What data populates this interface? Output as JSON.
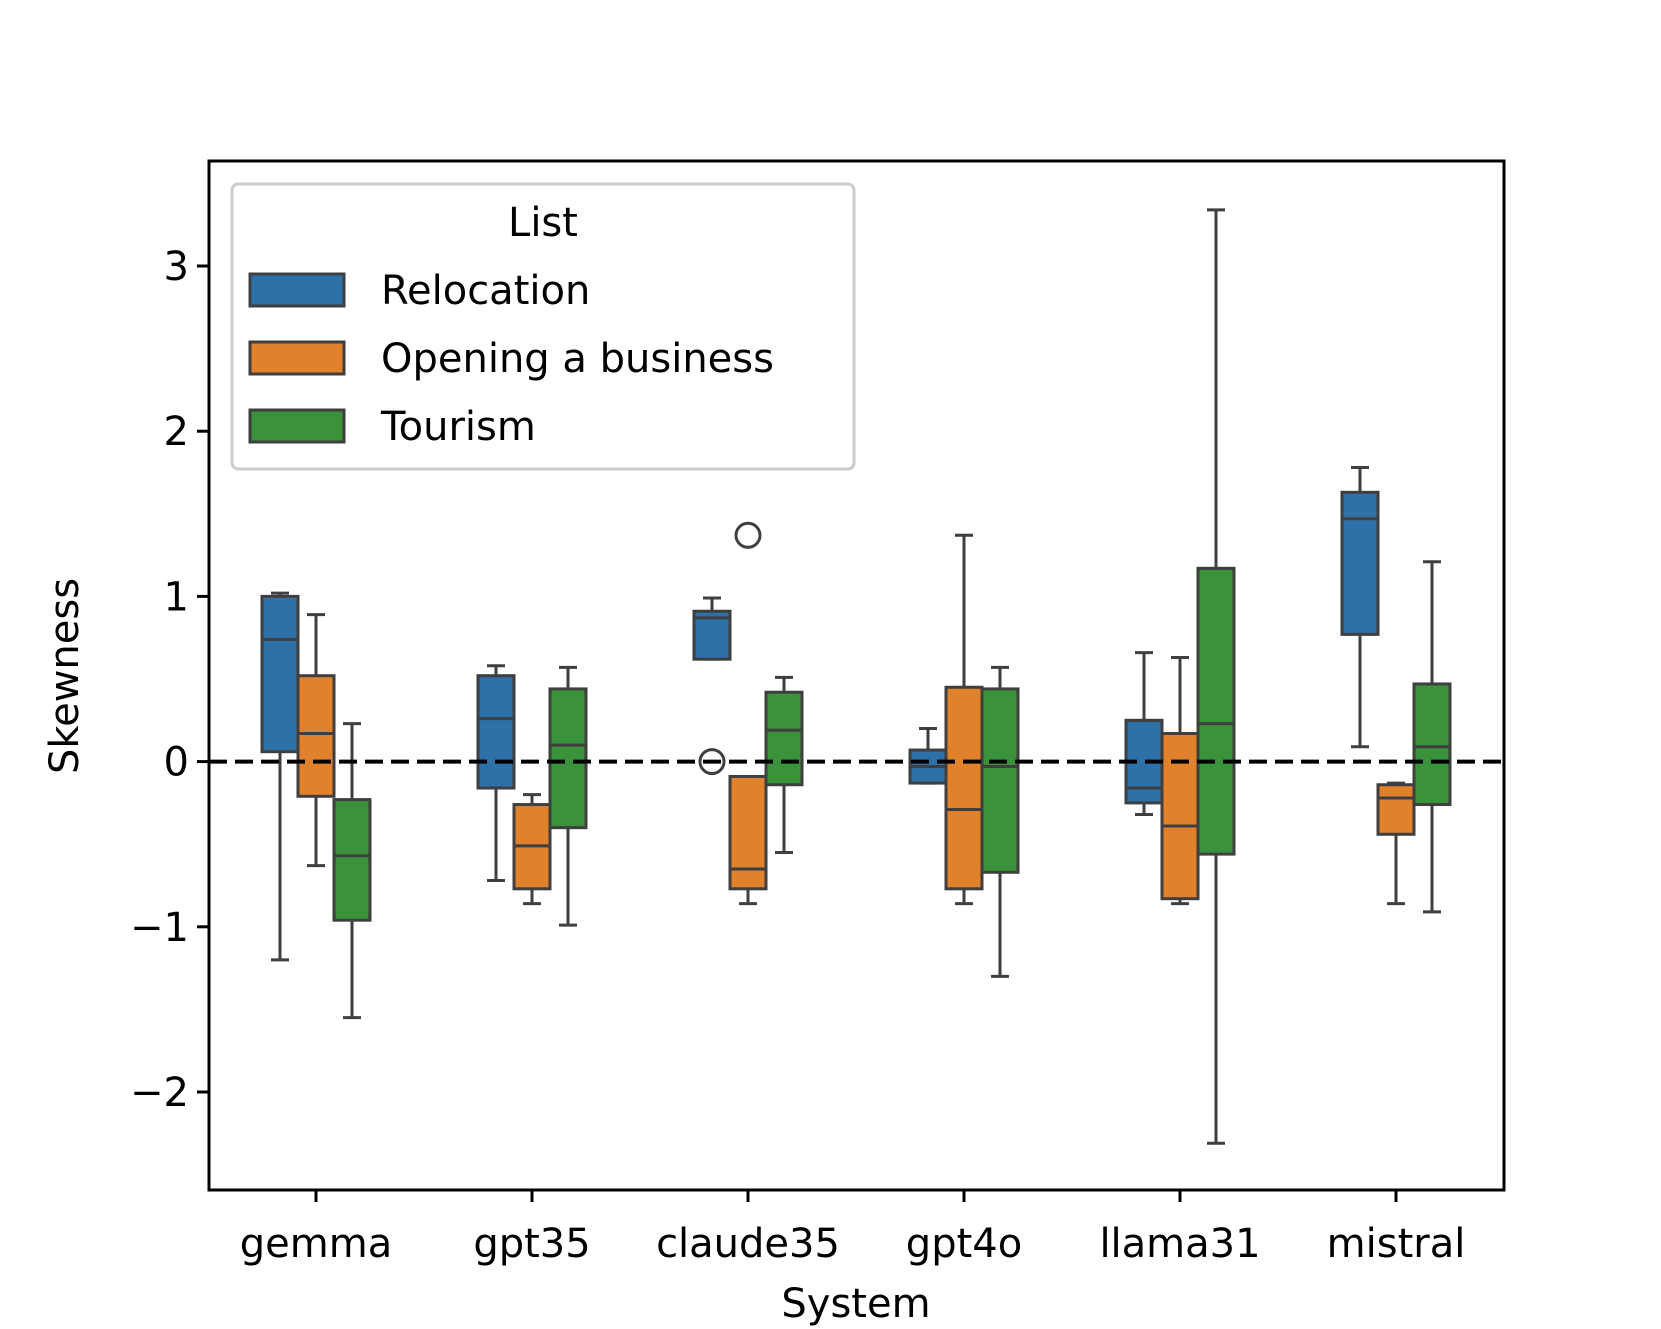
{
  "chart_data": {
    "type": "boxplot",
    "title": "",
    "xlabel": "System",
    "ylabel": "Skewness",
    "ylim": [
      -2.6,
      3.6
    ],
    "yticks": [
      -2,
      -1,
      0,
      1,
      2,
      3
    ],
    "ytick_labels": [
      "−2",
      "−1",
      "0",
      "1",
      "2",
      "3"
    ],
    "reference_line": 0,
    "categories": [
      "gemma",
      "gpt35",
      "claude35",
      "gpt4o",
      "llama31",
      "mistral"
    ],
    "legend": {
      "title": "List",
      "position": "top-left"
    },
    "series": [
      {
        "name": "Relocation",
        "color": "#2e70a8",
        "boxes": [
          {
            "whislo": -1.2,
            "q1": 0.06,
            "med": 0.74,
            "q3": 1.0,
            "whishi": 1.02,
            "fliers": []
          },
          {
            "whislo": -0.72,
            "q1": -0.16,
            "med": 0.26,
            "q3": 0.52,
            "whishi": 0.58,
            "fliers": []
          },
          {
            "whislo": 0.62,
            "q1": 0.62,
            "med": 0.87,
            "q3": 0.91,
            "whishi": 0.99,
            "fliers": [
              0.0
            ]
          },
          {
            "whislo": -0.13,
            "q1": -0.13,
            "med": -0.03,
            "q3": 0.07,
            "whishi": 0.2,
            "fliers": []
          },
          {
            "whislo": -0.32,
            "q1": -0.25,
            "med": -0.16,
            "q3": 0.25,
            "whishi": 0.66,
            "fliers": []
          },
          {
            "whislo": 0.09,
            "q1": 0.77,
            "med": 1.47,
            "q3": 1.63,
            "whishi": 1.78,
            "fliers": []
          }
        ]
      },
      {
        "name": "Opening a business",
        "color": "#e1812c",
        "boxes": [
          {
            "whislo": -0.63,
            "q1": -0.21,
            "med": 0.17,
            "q3": 0.52,
            "whishi": 0.89,
            "fliers": []
          },
          {
            "whislo": -0.86,
            "q1": -0.77,
            "med": -0.51,
            "q3": -0.26,
            "whishi": -0.2,
            "fliers": []
          },
          {
            "whislo": -0.86,
            "q1": -0.77,
            "med": -0.65,
            "q3": -0.09,
            "whishi": -0.09,
            "fliers": [
              1.37
            ]
          },
          {
            "whislo": -0.86,
            "q1": -0.77,
            "med": -0.29,
            "q3": 0.45,
            "whishi": 1.37,
            "fliers": []
          },
          {
            "whislo": -0.86,
            "q1": -0.83,
            "med": -0.39,
            "q3": 0.17,
            "whishi": 0.63,
            "fliers": []
          },
          {
            "whislo": -0.86,
            "q1": -0.44,
            "med": -0.22,
            "q3": -0.14,
            "whishi": -0.13,
            "fliers": []
          }
        ]
      },
      {
        "name": "Tourism",
        "color": "#3a923a",
        "boxes": [
          {
            "whislo": -1.55,
            "q1": -0.96,
            "med": -0.57,
            "q3": -0.23,
            "whishi": 0.23,
            "fliers": []
          },
          {
            "whislo": -0.99,
            "q1": -0.4,
            "med": 0.1,
            "q3": 0.44,
            "whishi": 0.57,
            "fliers": []
          },
          {
            "whislo": -0.55,
            "q1": -0.14,
            "med": 0.19,
            "q3": 0.42,
            "whishi": 0.51,
            "fliers": []
          },
          {
            "whislo": -1.3,
            "q1": -0.67,
            "med": -0.03,
            "q3": 0.44,
            "whishi": 0.57,
            "fliers": []
          },
          {
            "whislo": -2.31,
            "q1": -0.56,
            "med": 0.23,
            "q3": 1.17,
            "whishi": 3.34,
            "fliers": []
          },
          {
            "whislo": -0.91,
            "q1": -0.26,
            "med": 0.09,
            "q3": 0.47,
            "whishi": 1.21,
            "fliers": []
          }
        ]
      }
    ]
  }
}
